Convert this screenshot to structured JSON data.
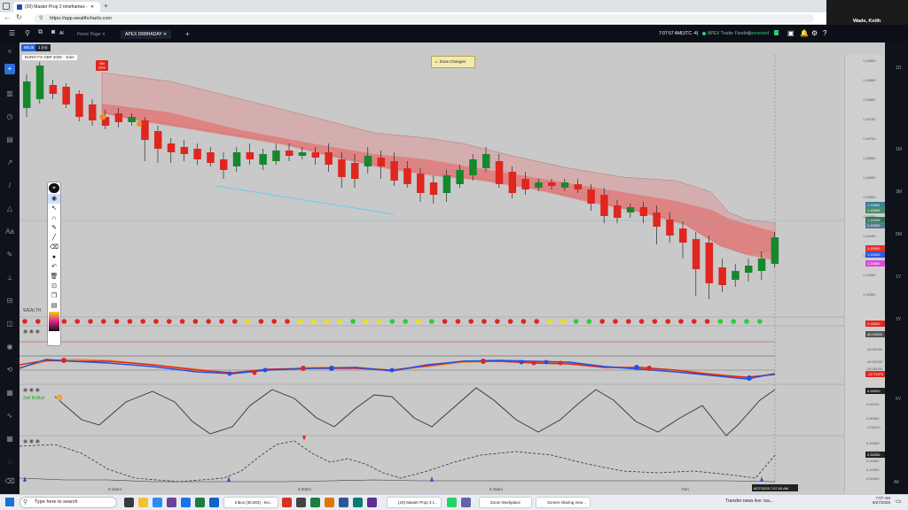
{
  "browser": {
    "tab_title": "(20) Master Prop 2 timeframes -",
    "url": "https://app.wealthcharts.com"
  },
  "meeting": {
    "user_name": "Wade, Keith"
  },
  "app": {
    "tabs": [
      "Home Page",
      "APEX DR8HADAY"
    ],
    "time": "7:07:57 AM",
    "timezone": "(UTC -4)",
    "account": "APEX Trader Funding",
    "status": "Connected",
    "ai_label": "AI"
  },
  "chart": {
    "symbol_chip": "6EU5",
    "timeframe_chip": "1 (m)",
    "legend": "EURO FX GBP 2025 · 1min",
    "alert": "Zone Changes",
    "sell_label": "Sell\nZone",
    "time_labels": [
      "6:15am",
      "6:30am",
      "6:45am",
      "7am"
    ],
    "crosshair_time": "8/27/2025 7:07:00 AM",
    "price_labels": [
      "1.16900",
      "1.16850",
      "1.16800",
      "1.16750",
      "1.16700",
      "1.16650",
      "1.16600",
      "1.16550",
      "1.16500",
      "1.16450",
      "1.16400",
      "1.16350",
      "1.16300"
    ],
    "price_tags": [
      {
        "text": "1.15964",
        "color": "#3b7f8f"
      },
      {
        "text": "1.15956",
        "color": "#4d8a6c"
      },
      {
        "text": "1.15946",
        "color": "#2f7a57"
      },
      {
        "text": "1.15942",
        "color": "#537b8f"
      },
      {
        "text": "1.15925",
        "color": "#e2342b"
      },
      {
        "text": "1.15920",
        "color": "#2d5ad8"
      },
      {
        "text": "1.15885",
        "color": "#d84bd8"
      }
    ],
    "time_axis_right": [
      "1M",
      "3M",
      "6M",
      "1Y",
      "3Y",
      "5Y",
      "All"
    ]
  },
  "panels": {
    "dots_label": "WEALTH",
    "dots_value": "0.00000",
    "osc_value": "40.00000",
    "osc_labels": [
      "-20.00000",
      "-40.00000",
      "-60.00000"
    ],
    "osc_tag": "-22.71375",
    "wave_value": "0.00020",
    "wave_labels": [
      "0.00010",
      "0.00000",
      "-0.00010"
    ],
    "wave_label_text": "Sell Bullish",
    "cycle_value": "0.00050",
    "cycle_tag": "0.54055",
    "cycle_labels": [
      "0.40000",
      "0.30000",
      "0.20000",
      "0.10000",
      "0.00000"
    ]
  },
  "taskbar": {
    "search_placeholder": "Type here to search",
    "items": [
      "Inbox (30,903) - kei...",
      "(20) Master Prop 3 t...",
      "Zoom Workplace",
      "Screen sharing mee..."
    ],
    "news": "Transfer news live: Isa...",
    "clock_time": "7:07 AM",
    "clock_date": "8/27/2025"
  }
}
